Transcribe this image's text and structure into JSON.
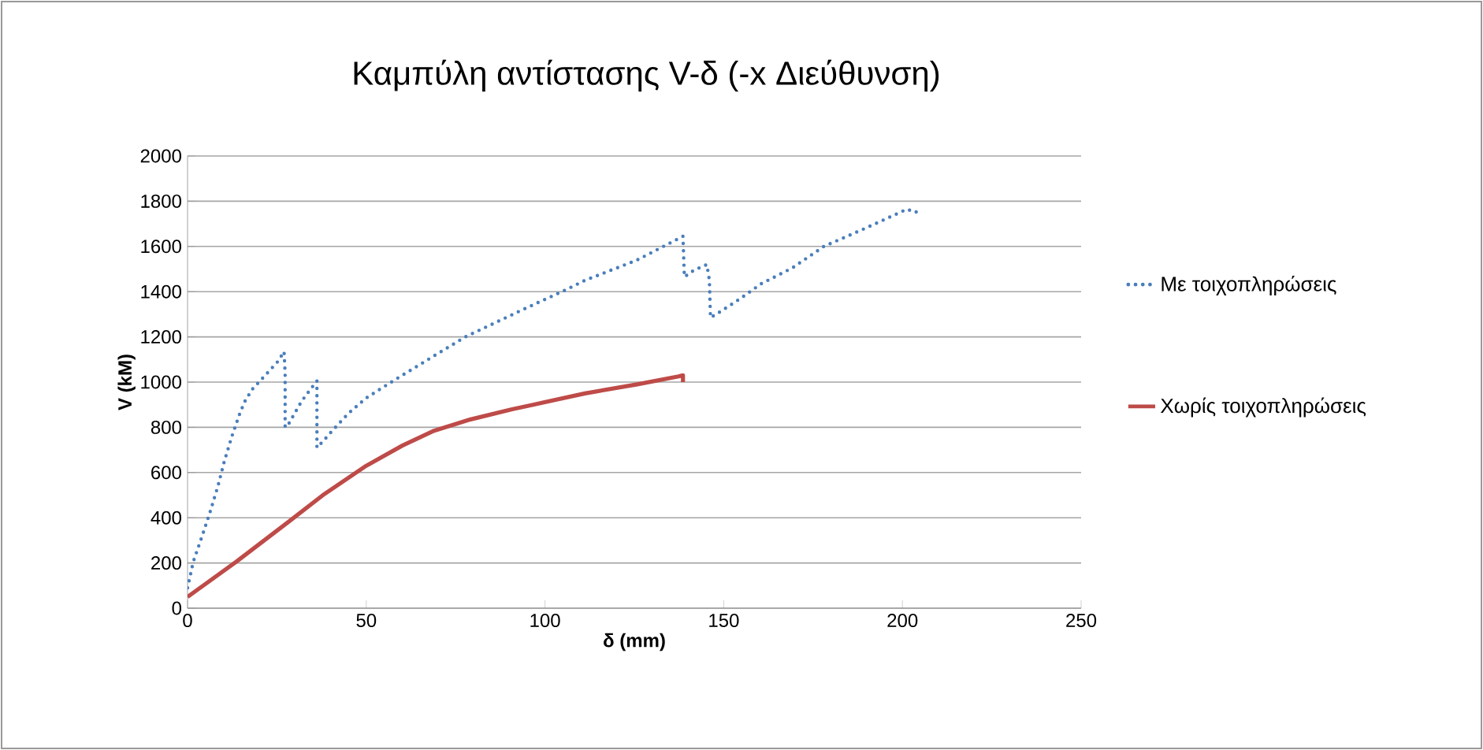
{
  "chart_data": {
    "type": "line",
    "title": "Καμπύλη αντίστασης V-δ (-x Διεύθυνση)",
    "xlabel": "δ (mm)",
    "ylabel": "V (kM)",
    "xlim": [
      0,
      250
    ],
    "xticks": [
      0,
      50,
      100,
      150,
      200,
      250
    ],
    "ylim": [
      0,
      2000
    ],
    "yticks": [
      0,
      200,
      400,
      600,
      800,
      1000,
      1200,
      1400,
      1600,
      1800,
      2000
    ],
    "grid": "y",
    "legend": "right",
    "marker": "none",
    "series": [
      {
        "name": "Με τοιχοπληρώσεις",
        "color": "#4a7ebb",
        "line_style": "dotted",
        "x": [
          0,
          1.6,
          4.1,
          6.3,
          8.5,
          10.3,
          12.4,
          13.6,
          14.7,
          16.2,
          18.2,
          22.6,
          25.2,
          27,
          27.3,
          27.3,
          28.1,
          29.9,
          31.9,
          34,
          36.2,
          36.2,
          38,
          40.5,
          44.9,
          50,
          58,
          66.8,
          77.7,
          86.4,
          93.7,
          105.4,
          111.2,
          125.8,
          138.6,
          139,
          141.7,
          145.3,
          146,
          146.3,
          148.9,
          154.7,
          160.5,
          169.2,
          178,
          189.6,
          201.3,
          203.5,
          205.7
        ],
        "values": [
          90,
          205,
          320,
          425,
          540,
          650,
          760,
          815,
          865,
          920,
          970,
          1045,
          1090,
          1135,
          1040,
          800,
          810,
          860,
          915,
          960,
          1005,
          710,
          740,
          785,
          860,
          930,
          1010,
          1095,
          1200,
          1265,
          1320,
          1405,
          1450,
          1540,
          1645,
          1465,
          1495,
          1520,
          1450,
          1285,
          1310,
          1370,
          1435,
          1505,
          1600,
          1680,
          1765,
          1750,
          1765
        ]
      },
      {
        "name": "Χωρίς τοιχοπληρώσεις",
        "color": "#be4b48",
        "line_style": "solid",
        "x": [
          0,
          13.6,
          28.1,
          38.3,
          50,
          60.2,
          69,
          79.2,
          90.8,
          96.7,
          111.2,
          125.8,
          137.4,
          138.6,
          138.6
        ],
        "values": [
          50,
          205,
          380,
          505,
          630,
          720,
          785,
          835,
          880,
          900,
          950,
          990,
          1025,
          1030,
          1000
        ]
      }
    ]
  }
}
